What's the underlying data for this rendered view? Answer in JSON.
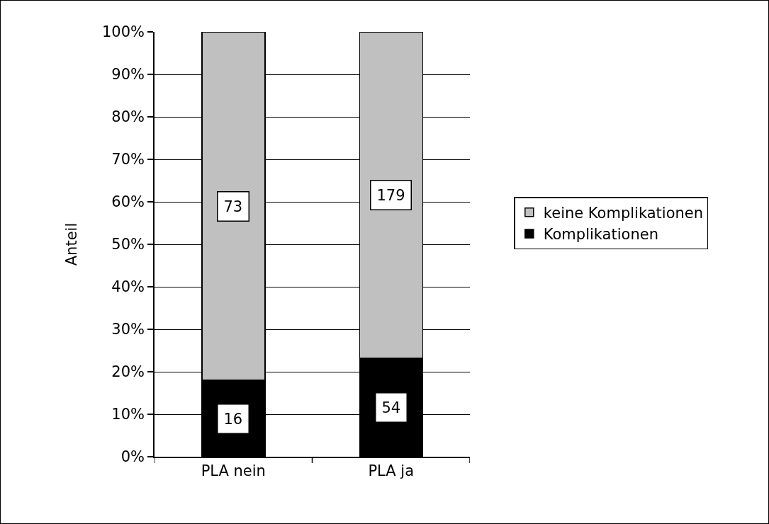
{
  "chart_data": {
    "type": "bar",
    "stacked": true,
    "ylabel": "Anteil",
    "categories": [
      "PLA nein",
      "PLA ja"
    ],
    "series": [
      {
        "name": "Komplikationen",
        "color": "#000000",
        "values": [
          18.0,
          23.2
        ]
      },
      {
        "name": "keine Komplikationen",
        "color": "#c0c0c0",
        "values": [
          82.0,
          76.8
        ]
      }
    ],
    "annotations": [
      "16",
      "54",
      "73",
      "179"
    ],
    "ylim": [
      0,
      100
    ],
    "yticks": [
      {
        "value": 0,
        "label": "0%"
      },
      {
        "value": 10,
        "label": "10%"
      },
      {
        "value": 20,
        "label": "20%"
      },
      {
        "value": 30,
        "label": "30%"
      },
      {
        "value": 40,
        "label": "40%"
      },
      {
        "value": 50,
        "label": "50%"
      },
      {
        "value": 60,
        "label": "60%"
      },
      {
        "value": 70,
        "label": "70%"
      },
      {
        "value": 80,
        "label": "80%"
      },
      {
        "value": 90,
        "label": "90%"
      },
      {
        "value": 100,
        "label": "100%"
      }
    ],
    "grid": "y",
    "legend": "right"
  }
}
